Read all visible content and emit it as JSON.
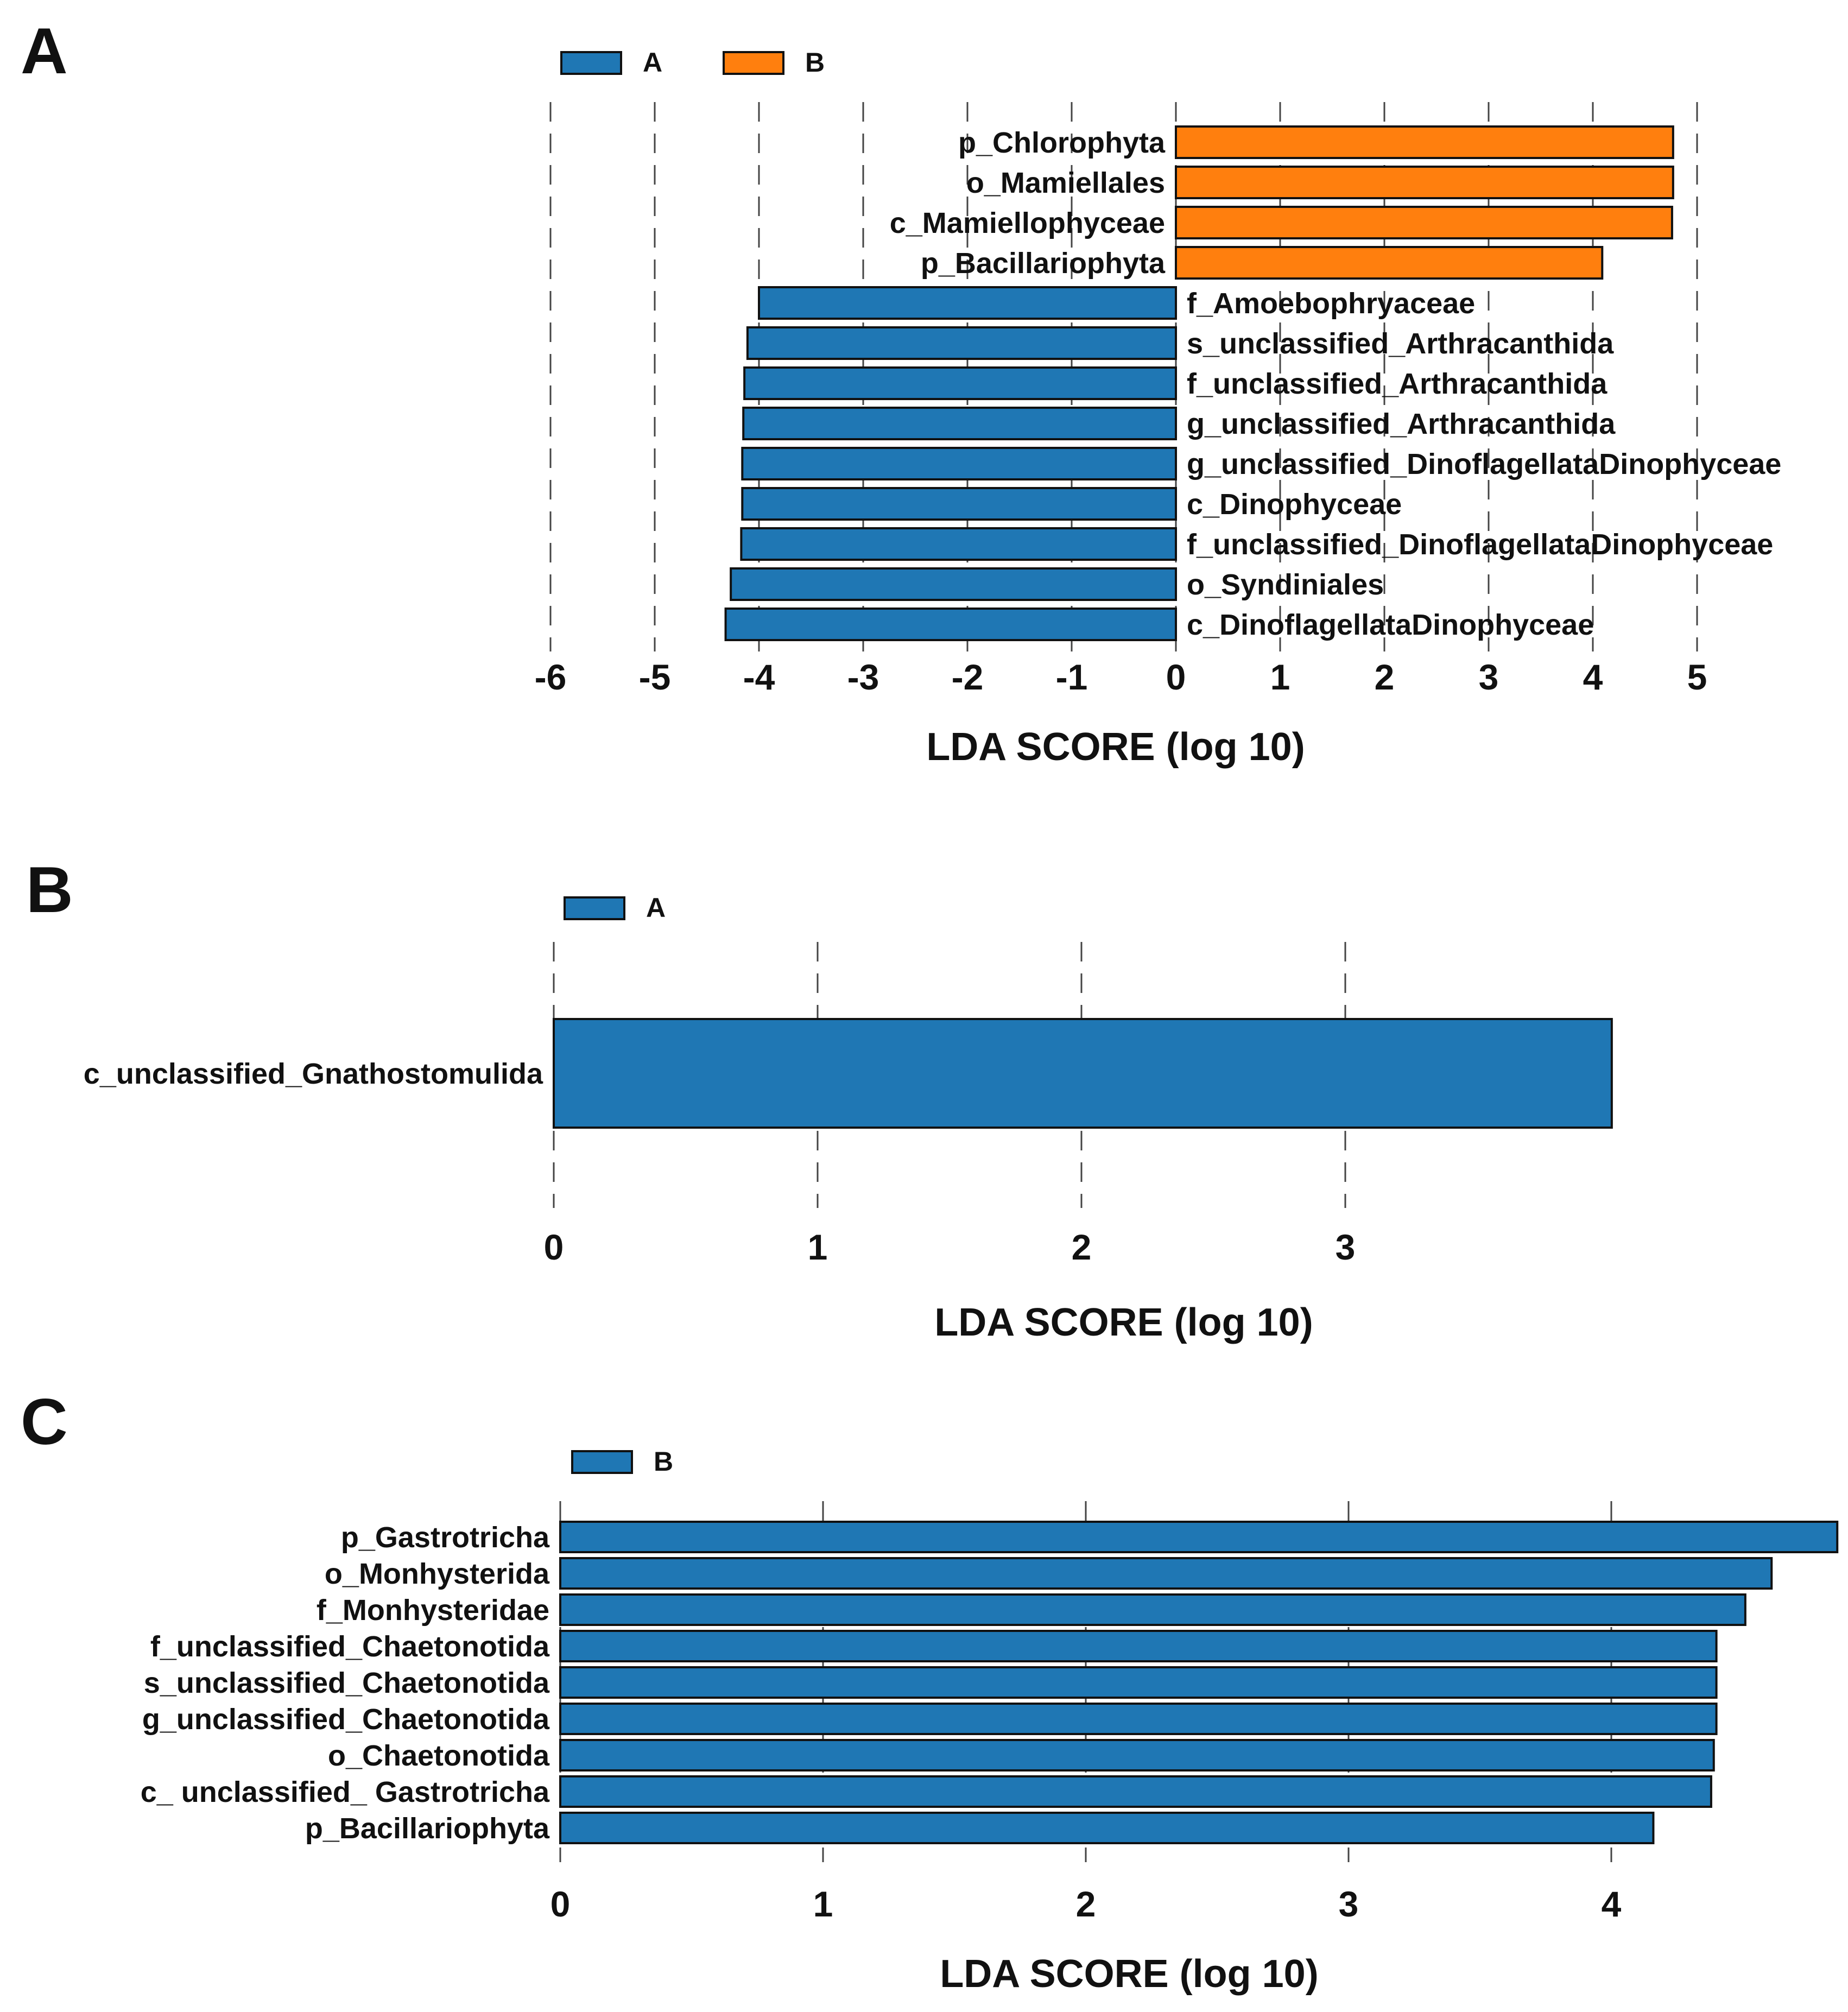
{
  "colors": {
    "group_A": "#1f77b4",
    "group_B": "#ff7f0e",
    "panel_c_bar": "#1f77b4"
  },
  "chart_data": [
    {
      "panel": "A",
      "type": "bar",
      "orientation": "horizontal",
      "xlabel": "LDA SCORE (log 10)",
      "xlim": [
        -6,
        5
      ],
      "xticks": [
        -6,
        -5,
        -4,
        -3,
        -2,
        -1,
        0,
        1,
        2,
        3,
        4,
        5
      ],
      "legend": [
        {
          "name": "A",
          "color": "#1f77b4"
        },
        {
          "name": "B",
          "color": "#ff7f0e"
        }
      ],
      "bars": [
        {
          "label": "p_Chlorophyta",
          "value": 4.77,
          "group": "B"
        },
        {
          "label": "o_Mamiellales",
          "value": 4.77,
          "group": "B"
        },
        {
          "label": "c_Mamiellophyceae",
          "value": 4.76,
          "group": "B"
        },
        {
          "label": "p_Bacillariophyta",
          "value": 4.09,
          "group": "B"
        },
        {
          "label": "f_Amoebophryaceae",
          "value": -4.0,
          "group": "A"
        },
        {
          "label": "s_unclassified_Arthracanthida",
          "value": -4.11,
          "group": "A"
        },
        {
          "label": "f_unclassified_Arthracanthida",
          "value": -4.14,
          "group": "A"
        },
        {
          "label": "g_unclassified_Arthracanthida",
          "value": -4.15,
          "group": "A"
        },
        {
          "label": "g_unclassified_DinoflagellataDinophyceae",
          "value": -4.16,
          "group": "A"
        },
        {
          "label": "c_Dinophyceae",
          "value": -4.16,
          "group": "A"
        },
        {
          "label": "f_unclassified_DinoflagellataDinophyceae",
          "value": -4.17,
          "group": "A"
        },
        {
          "label": "o_Syndiniales",
          "value": -4.27,
          "group": "A"
        },
        {
          "label": "c_DinoflagellataDinophyceae",
          "value": -4.32,
          "group": "A"
        }
      ]
    },
    {
      "panel": "B",
      "type": "bar",
      "orientation": "horizontal",
      "xlabel": "LDA SCORE (log 10)",
      "xlim": [
        0,
        4
      ],
      "xticks": [
        0,
        1,
        2,
        3
      ],
      "legend": [
        {
          "name": "A",
          "color": "#1f77b4"
        }
      ],
      "bars": [
        {
          "label": "c_unclassified_Gnathostomulida",
          "value": 4.01,
          "group": "A"
        }
      ]
    },
    {
      "panel": "C",
      "type": "bar",
      "orientation": "horizontal",
      "xlabel": "LDA SCORE (log 10)",
      "xlim": [
        0,
        4.86
      ],
      "xticks": [
        0,
        1,
        2,
        3,
        4
      ],
      "legend": [
        {
          "name": "B",
          "color": "#1f77b4"
        }
      ],
      "bars": [
        {
          "label": "p_Gastrotricha",
          "value": 4.86,
          "group": "B"
        },
        {
          "label": "o_Monhysterida",
          "value": 4.61,
          "group": "B"
        },
        {
          "label": "f_Monhysteridae",
          "value": 4.51,
          "group": "B"
        },
        {
          "label": "f_unclassified_Chaetonotida",
          "value": 4.4,
          "group": "B"
        },
        {
          "label": "s_unclassified_Chaetonotida",
          "value": 4.4,
          "group": "B"
        },
        {
          "label": "g_unclassified_Chaetonotida",
          "value": 4.4,
          "group": "B"
        },
        {
          "label": "o_Chaetonotida",
          "value": 4.39,
          "group": "B"
        },
        {
          "label": "c_ unclassified_ Gastrotricha",
          "value": 4.38,
          "group": "B"
        },
        {
          "label": "p_Bacillariophyta",
          "value": 4.16,
          "group": "B"
        }
      ]
    }
  ]
}
